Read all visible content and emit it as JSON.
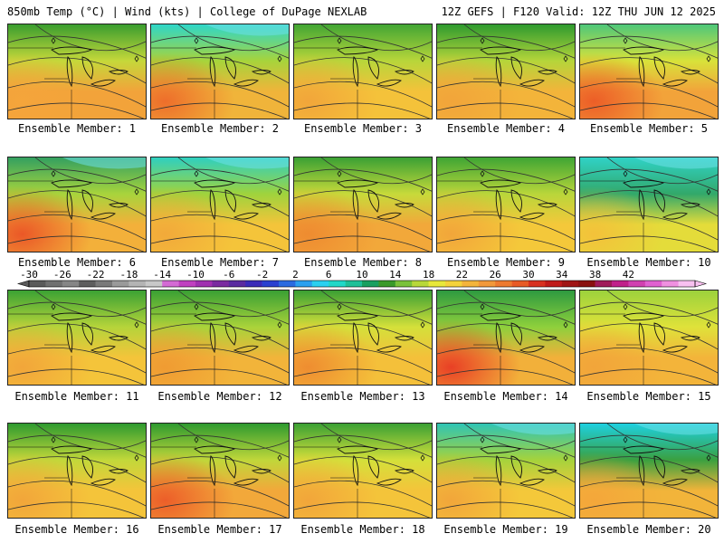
{
  "header": {
    "left": "850mb Temp (°C) | Wind (kts) | College of DuPage NEXLAB",
    "right": "12Z GEFS | F120 Valid: 12Z THU JUN 12 2025"
  },
  "panel_label_prefix": "Ensemble Member: ",
  "members": [
    {
      "id": 1,
      "label": "Ensemble Member: 1",
      "north": "#3a9d2f",
      "mid": "#c5d83a",
      "south": "#f2a33a",
      "hot": "#f5a53b",
      "cool": false
    },
    {
      "id": 2,
      "label": "Ensemble Member: 2",
      "north": "#2fd6c8",
      "mid": "#a7d43b",
      "south": "#f0b43a",
      "hot": "#ee6a2a",
      "cool": true
    },
    {
      "id": 3,
      "label": "Ensemble Member: 3",
      "north": "#42a534",
      "mid": "#b8d63a",
      "south": "#f4c23a",
      "hot": "#f2a43a",
      "cool": false
    },
    {
      "id": 4,
      "label": "Ensemble Member: 4",
      "north": "#2e9a2f",
      "mid": "#b5d53a",
      "south": "#f3b43a",
      "hot": "#f2a43a",
      "cool": false
    },
    {
      "id": 5,
      "label": "Ensemble Member: 5",
      "north": "#4ec77a",
      "mid": "#d8e23a",
      "south": "#f2a33a",
      "hot": "#ec5a26",
      "cool": false
    },
    {
      "id": 6,
      "label": "Ensemble Member: 6",
      "north": "#33a060",
      "mid": "#a8d43c",
      "south": "#f3b03a",
      "hot": "#ea5326",
      "cool": true
    },
    {
      "id": 7,
      "label": "Ensemble Member: 7",
      "north": "#2fd0c0",
      "mid": "#9fd33c",
      "south": "#f4c43a",
      "hot": "#f2a83a",
      "cool": true
    },
    {
      "id": 8,
      "label": "Ensemble Member: 8",
      "north": "#3aa034",
      "mid": "#c7da3a",
      "south": "#f2a83a",
      "hot": "#ee8a30",
      "cool": false
    },
    {
      "id": 9,
      "label": "Ensemble Member: 9",
      "north": "#3fa534",
      "mid": "#b9d63a",
      "south": "#f4c83a",
      "hot": "#f2a43a",
      "cool": false
    },
    {
      "id": 10,
      "label": "Ensemble Member: 10",
      "north": "#30d2c6",
      "mid": "#32a86a",
      "south": "#e4dc3a",
      "hot": "#f4c03a",
      "cool": true
    },
    {
      "id": 11,
      "label": "Ensemble Member: 11",
      "north": "#3ca234",
      "mid": "#b5d43a",
      "south": "#f4c43a",
      "hot": "#f2a43a",
      "cool": false
    },
    {
      "id": 12,
      "label": "Ensemble Member: 12",
      "north": "#3aa034",
      "mid": "#a9d33a",
      "south": "#f2b43a",
      "hot": "#f09a32",
      "cool": false
    },
    {
      "id": 13,
      "label": "Ensemble Member: 13",
      "north": "#3aa034",
      "mid": "#d4e03a",
      "south": "#f4c03a",
      "hot": "#ee8a30",
      "cool": false
    },
    {
      "id": 14,
      "label": "Ensemble Member: 14",
      "north": "#2e9a40",
      "mid": "#8ed03c",
      "south": "#f2b03a",
      "hot": "#e83a24",
      "cool": false
    },
    {
      "id": 15,
      "label": "Ensemble Member: 15",
      "north": "#9cd23c",
      "mid": "#dfe23a",
      "south": "#f3b43a",
      "hot": "#f2a43a",
      "cool": false
    },
    {
      "id": 16,
      "label": "Ensemble Member: 16",
      "north": "#2e9a2f",
      "mid": "#c2d83a",
      "south": "#f4c43a",
      "hot": "#f2a43a",
      "cool": false
    },
    {
      "id": 17,
      "label": "Ensemble Member: 17",
      "north": "#2e9a2f",
      "mid": "#c0d73a",
      "south": "#f2a83a",
      "hot": "#ec5a28",
      "cool": false
    },
    {
      "id": 18,
      "label": "Ensemble Member: 18",
      "north": "#3aa034",
      "mid": "#d4e03a",
      "south": "#f4c43a",
      "hot": "#f2a43a",
      "cool": false
    },
    {
      "id": 19,
      "label": "Ensemble Member: 19",
      "north": "#2fc4b4",
      "mid": "#a5d33c",
      "south": "#f4c83a",
      "hot": "#f2a43a",
      "cool": true
    },
    {
      "id": 20,
      "label": "Ensemble Member: 20",
      "north": "#1ed0e0",
      "mid": "#3aa040",
      "south": "#f2b43a",
      "hot": "#f4a63a",
      "cool": true
    }
  ],
  "colorbar": {
    "labels": [
      "-30",
      "-26",
      "-22",
      "-18",
      "-14",
      "-10",
      "-6",
      "-2",
      "2",
      "6",
      "10",
      "14",
      "18",
      "22",
      "26",
      "30",
      "34",
      "38",
      "42"
    ],
    "colors": [
      "#5a5a5a",
      "#707070",
      "#868686",
      "#5e5e5e",
      "#7a7a7a",
      "#9a9a9a",
      "#b4b4b4",
      "#c8c8c8",
      "#d46ad4",
      "#c040c0",
      "#a030b0",
      "#7a2aa0",
      "#5a2aa0",
      "#3a2ab8",
      "#2a40d0",
      "#2a6ae0",
      "#2aa0f0",
      "#2ad0f0",
      "#20d8c8",
      "#1ec098",
      "#18a060",
      "#3a9a2a",
      "#7ac23a",
      "#b8d83a",
      "#e8e83a",
      "#f4d23a",
      "#f4b43a",
      "#f2983a",
      "#ee7a30",
      "#e85a26",
      "#d83020",
      "#c01a1a",
      "#a01414",
      "#8a1010",
      "#a01a5a",
      "#c0208a",
      "#d040b0",
      "#e060d0",
      "#f090e0",
      "#f8c0f0"
    ]
  }
}
